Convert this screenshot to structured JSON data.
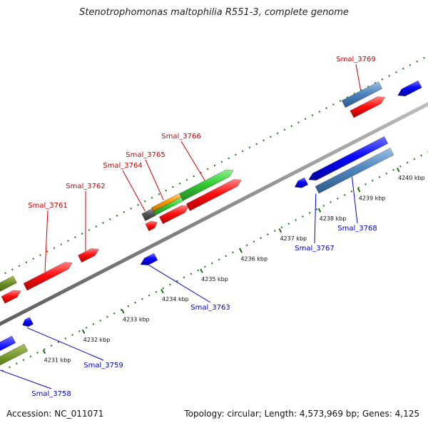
{
  "title": "Stenotrophomonas maltophilia R551-3, complete genome",
  "footer": {
    "accession": "Accession: NC_011071",
    "summary": "Topology: circular; Length: 4,573,969 bp; Genes: 4,125"
  },
  "colors": {
    "forward_label": "#cc0000",
    "reverse_label": "#0000cc",
    "backbone": "#888888",
    "dotted_track": "#2a7a2a",
    "red": "#ff0000",
    "blue": "#0000ff",
    "steel": "#4f86bf",
    "olive": "#6b8e23",
    "green": "#33cc33",
    "orange": "#ff9900",
    "gray": "#555555",
    "khaki": "#b5b07a"
  },
  "axis": {
    "unit": "kbp",
    "ticks": [
      {
        "kbp": 4231,
        "label": "4231 kbp"
      },
      {
        "kbp": 4232,
        "label": "4232 kbp"
      },
      {
        "kbp": 4233,
        "label": "4233 kbp"
      },
      {
        "kbp": 4234,
        "label": "4234 kbp"
      },
      {
        "kbp": 4235,
        "label": "4235 kbp"
      },
      {
        "kbp": 4236,
        "label": "4236 kbp"
      },
      {
        "kbp": 4237,
        "label": "4237 kbp"
      },
      {
        "kbp": 4238,
        "label": "4238 kbp"
      },
      {
        "kbp": 4239,
        "label": "4239 kbp"
      },
      {
        "kbp": 4240,
        "label": "4240 kbp"
      }
    ]
  },
  "genes": [
    {
      "id": "Smal_3758",
      "strand": "reverse",
      "label": "Smal_3758"
    },
    {
      "id": "Smal_3759",
      "strand": "reverse",
      "label": "Smal_3759"
    },
    {
      "id": "Smal_3761",
      "strand": "forward",
      "label": "Smal_3761"
    },
    {
      "id": "Smal_3762",
      "strand": "forward",
      "label": "Smal_3762"
    },
    {
      "id": "Smal_3763",
      "strand": "reverse",
      "label": "Smal_3763"
    },
    {
      "id": "Smal_3764",
      "strand": "forward",
      "label": "Smal_3764"
    },
    {
      "id": "Smal_3765",
      "strand": "forward",
      "label": "Smal_3765"
    },
    {
      "id": "Smal_3766",
      "strand": "forward",
      "label": "Smal_3766"
    },
    {
      "id": "Smal_3767",
      "strand": "reverse",
      "label": "Smal_3767"
    },
    {
      "id": "Smal_3768",
      "strand": "reverse",
      "label": "Smal_3768"
    },
    {
      "id": "Smal_3769",
      "strand": "forward",
      "label": "Smal_3769"
    }
  ]
}
